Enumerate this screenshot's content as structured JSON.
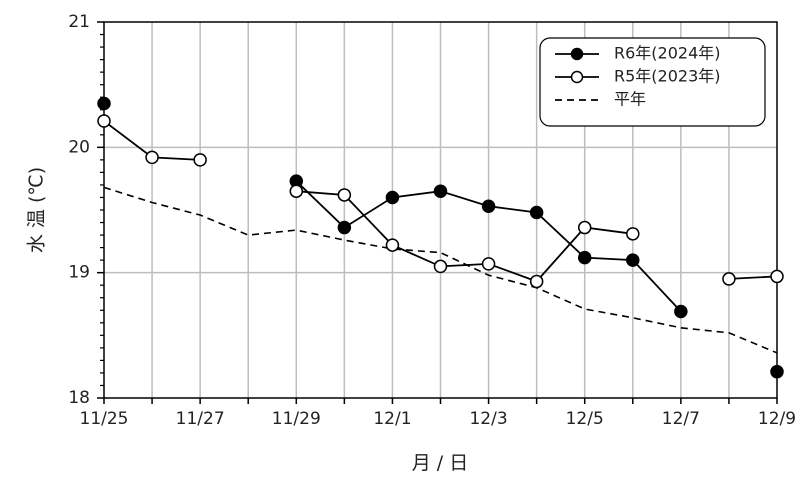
{
  "chart_data": {
    "type": "line",
    "title": "",
    "xlabel": "月 / 日",
    "ylabel": "水 温 (℃)",
    "ylim": [
      18,
      21
    ],
    "yticks": [
      "18",
      "19",
      "20",
      "21"
    ],
    "x": [
      "11/25",
      "11/26",
      "11/27",
      "11/28",
      "11/29",
      "11/30",
      "12/1",
      "12/2",
      "12/3",
      "12/4",
      "12/5",
      "12/6",
      "12/7",
      "12/8",
      "12/9"
    ],
    "xtick_labels": [
      "11/25",
      "",
      "11/27",
      "",
      "11/29",
      "",
      "12/1",
      "",
      "12/3",
      "",
      "12/5",
      "",
      "12/7",
      "",
      "12/9"
    ],
    "grid": true,
    "legend_position": "top-right",
    "series": [
      {
        "name": "R6年(2024年)",
        "marker": "filled-circle",
        "line_style": "solid",
        "color": "#000000",
        "values": [
          20.35,
          null,
          null,
          null,
          19.73,
          19.36,
          19.6,
          19.65,
          19.53,
          19.48,
          19.12,
          19.1,
          18.69,
          null,
          18.21
        ]
      },
      {
        "name": "R5年(2023年)",
        "marker": "open-circle",
        "line_style": "solid",
        "color": "#000000",
        "values": [
          20.21,
          19.92,
          19.9,
          null,
          19.65,
          19.62,
          19.22,
          19.05,
          19.07,
          18.93,
          19.36,
          19.31,
          null,
          18.95,
          18.97
        ]
      },
      {
        "name": "平年",
        "marker": "none",
        "line_style": "dashed",
        "color": "#000000",
        "values": [
          19.68,
          19.56,
          19.46,
          19.3,
          19.34,
          19.26,
          19.19,
          19.16,
          18.98,
          18.88,
          18.71,
          18.64,
          18.56,
          18.52,
          18.36
        ]
      }
    ]
  }
}
